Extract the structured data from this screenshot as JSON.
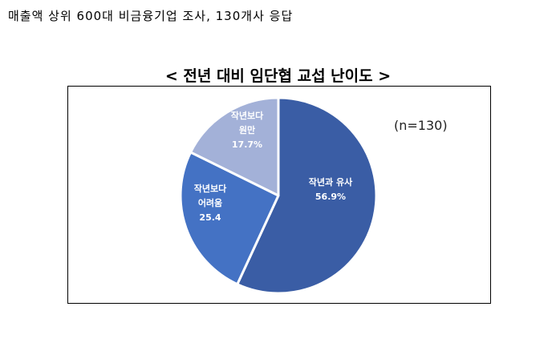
{
  "header": {
    "text": "매출액 상위 600대 비금융기업 조사, 130개사 응답"
  },
  "chart_data": {
    "type": "pie",
    "title": "< 전년 대비 임단협 교섭 난이도 >",
    "note": "(n=130)",
    "slices": [
      {
        "label": [
          "작년과 유사"
        ],
        "value": 56.9,
        "value_label": "56.9%",
        "color": "#3A5DA5"
      },
      {
        "label": [
          "작년보다",
          "어려움"
        ],
        "value": 25.4,
        "value_label": "25.4",
        "color": "#4472C4"
      },
      {
        "label": [
          "작년보다",
          "원만"
        ],
        "value": 17.7,
        "value_label": "17.7%",
        "color": "#A3B1D8"
      }
    ],
    "start_angle_deg": 0,
    "direction": "clockwise",
    "slice_border_color": "#ffffff"
  }
}
